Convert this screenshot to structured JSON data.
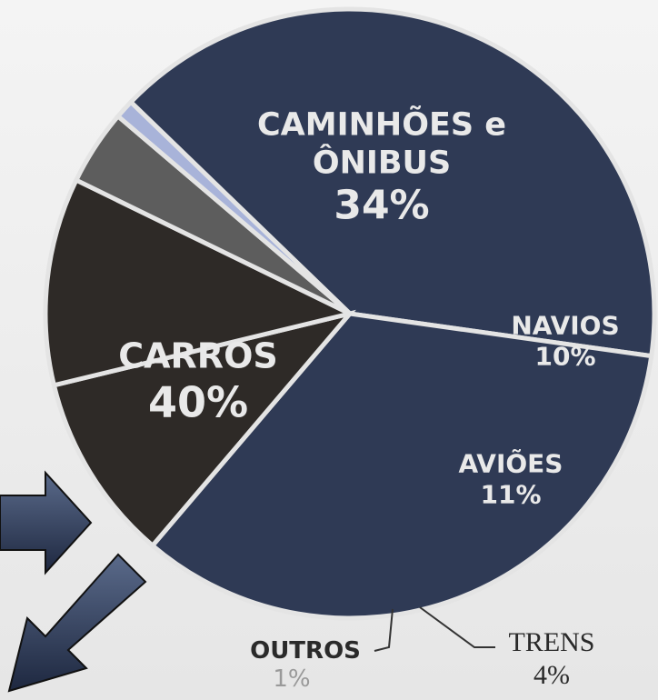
{
  "chart_data": {
    "type": "pie",
    "categories": [
      "CARROS",
      "CAMINHÕES e ÔNIBUS",
      "NAVIOS",
      "AVIÕES",
      "TRENS",
      "OUTROS"
    ],
    "values": [
      40,
      34,
      10,
      11,
      4,
      1
    ],
    "value_labels": [
      "40%",
      "34%",
      "10%",
      "11%",
      "4%",
      "1%"
    ],
    "colors": [
      "#2f3a55",
      "#2f3a55",
      "#2e2a27",
      "#2e2a27",
      "#5d5d5d",
      "#a8b3d9"
    ]
  }
}
